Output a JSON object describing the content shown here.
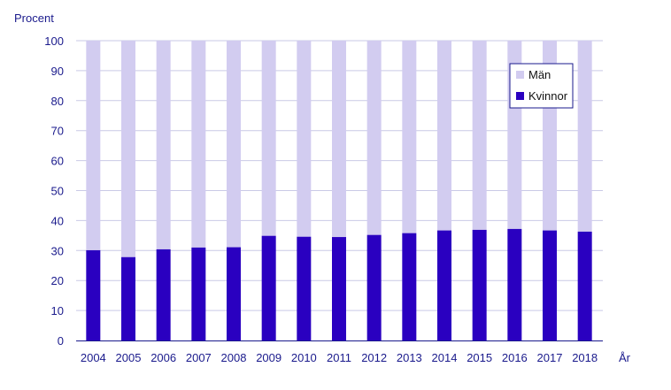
{
  "chart_data": {
    "type": "bar",
    "stacked": true,
    "ylabel": "Procent",
    "xlabel": "År",
    "ylim": [
      0,
      100
    ],
    "yticks": [
      0,
      10,
      20,
      30,
      40,
      50,
      60,
      70,
      80,
      90,
      100
    ],
    "grid": true,
    "legend_position": "top-right",
    "categories": [
      "2004",
      "2005",
      "2006",
      "2007",
      "2008",
      "2009",
      "2010",
      "2011",
      "2012",
      "2013",
      "2014",
      "2015",
      "2016",
      "2017",
      "2018"
    ],
    "series": [
      {
        "name": "Kvinnor",
        "color": "#2a00c0",
        "values": [
          30.1,
          27.8,
          30.4,
          31.0,
          31.1,
          34.9,
          34.6,
          34.5,
          35.2,
          35.8,
          36.7,
          36.9,
          37.2,
          36.7,
          36.3
        ]
      },
      {
        "name": "Män",
        "color": "#d2ccf0",
        "values": [
          69.9,
          72.2,
          69.6,
          69.0,
          68.9,
          65.1,
          65.4,
          65.5,
          64.8,
          64.2,
          63.3,
          63.1,
          62.8,
          63.3,
          63.7
        ]
      }
    ]
  }
}
